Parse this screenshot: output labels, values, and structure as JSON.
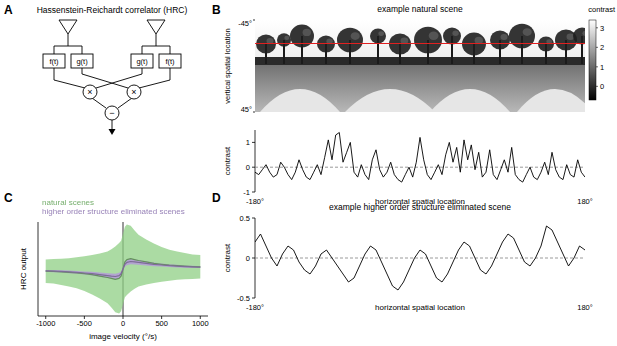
{
  "panel_labels": [
    "A",
    "B",
    "C",
    "D"
  ],
  "diagram": {
    "title": "Hassenstein-Reichardt correlator (HRC)",
    "filters": [
      "f(t)",
      "g(t)",
      "g(t)",
      "f(t)"
    ],
    "operators": [
      "×",
      "×",
      "−"
    ]
  },
  "image": {
    "title": "example natural scene",
    "ylabel": "vertical spatial location",
    "ylim": [
      -45,
      45
    ],
    "yticks": [
      {
        "value": -45,
        "label": "-45°"
      },
      {
        "value": 45,
        "label": "45°"
      }
    ],
    "row": -22,
    "colorbar": {
      "label": "contrast",
      "range": [
        -0.7,
        3.4
      ],
      "ticks": [
        0,
        1,
        2,
        3
      ]
    }
  },
  "chart_data": [
    {
      "type": "line",
      "xlabel": "horizontal spatial location",
      "ylabel": "contrast",
      "color": "#000000",
      "xlim": [
        -180,
        180
      ],
      "xticks": [
        {
          "value": -180,
          "label": "-180°"
        },
        {
          "value": 180,
          "label": "180°"
        }
      ],
      "ylim": [
        -1,
        1.5
      ],
      "yticks": [
        -1,
        0,
        1
      ],
      "x": [
        -180,
        -176,
        -172,
        -168,
        -164,
        -160,
        -156,
        -152,
        -148,
        -144,
        -140,
        -136,
        -132,
        -128,
        -124,
        -120,
        -116,
        -112,
        -108,
        -104,
        -100,
        -96,
        -92,
        -88,
        -84,
        -80,
        -76,
        -72,
        -68,
        -64,
        -60,
        -56,
        -52,
        -48,
        -44,
        -40,
        -36,
        -32,
        -28,
        -24,
        -20,
        -16,
        -12,
        -8,
        -4,
        0,
        4,
        8,
        12,
        16,
        20,
        24,
        28,
        32,
        36,
        40,
        44,
        48,
        52,
        56,
        60,
        64,
        68,
        72,
        76,
        80,
        84,
        88,
        92,
        96,
        100,
        104,
        108,
        112,
        116,
        120,
        124,
        128,
        132,
        136,
        140,
        144,
        148,
        152,
        156,
        160,
        164,
        168,
        172,
        176,
        180
      ],
      "values": [
        -0.2,
        -0.3,
        -0.1,
        0.1,
        -0.2,
        -0.4,
        -0.3,
        0.2,
        0.0,
        -0.3,
        -0.5,
        -0.2,
        0.3,
        -0.1,
        -0.4,
        -0.5,
        -0.2,
        0.1,
        -0.3,
        0.4,
        1.1,
        0.3,
        1.3,
        1.4,
        0.2,
        0.6,
        1.0,
        -0.2,
        -0.4,
        0.1,
        -0.3,
        -0.5,
        0.3,
        0.7,
        -0.1,
        -0.4,
        -0.2,
        0.2,
        -0.3,
        -0.5,
        -0.6,
        -0.3,
        0.0,
        -0.4,
        0.2,
        1.2,
        0.3,
        -0.3,
        -0.5,
        -0.2,
        0.1,
        -0.3,
        0.5,
        1.0,
        0.2,
        0.8,
        -0.2,
        1.1,
        0.3,
        0.9,
        -0.1,
        0.6,
        -0.4,
        -0.2,
        0.7,
        -0.3,
        -0.5,
        -0.1,
        0.3,
        -0.2,
        0.8,
        -0.3,
        -0.5,
        -0.6,
        -0.3,
        0.0,
        -0.4,
        -0.5,
        -0.2,
        0.2,
        -0.3,
        0.6,
        -0.1,
        -0.4,
        -0.5,
        0.1,
        -0.3,
        -0.4,
        0.3,
        -0.2,
        -0.4
      ]
    },
    {
      "type": "line",
      "xlabel": "image velocity (°/s)",
      "ylabel": "HRC output",
      "legend": "upper left",
      "tick_labels": "x",
      "xlim": [
        -1100,
        1100
      ],
      "xticks": [
        -1000,
        -500,
        0,
        500,
        1000
      ],
      "ylim": [
        -1,
        1
      ],
      "x": [
        -1000,
        -900,
        -800,
        -700,
        -600,
        -500,
        -400,
        -300,
        -200,
        -150,
        -100,
        -50,
        -25,
        0,
        25,
        50,
        100,
        150,
        200,
        300,
        400,
        500,
        600,
        700,
        800,
        900,
        1000
      ],
      "series": [
        {
          "name": "natural scenes",
          "color": "#8fcf84",
          "values": [
            -0.045,
            -0.05,
            -0.06,
            -0.07,
            -0.08,
            -0.1,
            -0.12,
            -0.15,
            -0.18,
            -0.2,
            -0.22,
            -0.2,
            -0.15,
            0,
            0.15,
            0.2,
            0.22,
            0.2,
            0.18,
            0.15,
            0.12,
            0.1,
            0.08,
            0.07,
            0.06,
            0.05,
            0.045
          ],
          "error": [
            0.25,
            0.26,
            0.28,
            0.3,
            0.33,
            0.37,
            0.42,
            0.48,
            0.55,
            0.62,
            0.7,
            0.75,
            0.75,
            0.75,
            0.75,
            0.75,
            0.7,
            0.62,
            0.55,
            0.48,
            0.42,
            0.37,
            0.33,
            0.3,
            0.28,
            0.26,
            0.25
          ]
        },
        {
          "name": "higher order structure eliminated scenes",
          "color": "#b39ad8",
          "values": [
            -0.04,
            -0.045,
            -0.05,
            -0.06,
            -0.07,
            -0.085,
            -0.1,
            -0.12,
            -0.14,
            -0.15,
            -0.16,
            -0.14,
            -0.1,
            0,
            0.1,
            0.14,
            0.16,
            0.15,
            0.14,
            0.12,
            0.1,
            0.085,
            0.07,
            0.06,
            0.05,
            0.045,
            0.04
          ],
          "error": [
            0.02,
            0.025,
            0.025,
            0.03,
            0.03,
            0.035,
            0.04,
            0.045,
            0.05,
            0.055,
            0.06,
            0.06,
            0.05,
            0.04,
            0.05,
            0.06,
            0.06,
            0.055,
            0.05,
            0.045,
            0.04,
            0.035,
            0.03,
            0.03,
            0.025,
            0.025,
            0.02
          ]
        }
      ]
    },
    {
      "type": "line",
      "title": "example higher order structure eliminated scene",
      "xlabel": "horizontal spatial location",
      "ylabel": "contrast",
      "color": "#000000",
      "xlim": [
        -180,
        180
      ],
      "xticks": [
        {
          "value": -180,
          "label": "-180°"
        },
        {
          "value": 180,
          "label": "180°"
        }
      ],
      "ylim": [
        -0.5,
        0.5
      ],
      "yticks": [
        -0.5,
        0,
        0.5
      ],
      "x": [
        -180,
        -174,
        -168,
        -162,
        -156,
        -150,
        -144,
        -138,
        -132,
        -126,
        -120,
        -114,
        -108,
        -102,
        -96,
        -90,
        -84,
        -78,
        -72,
        -66,
        -60,
        -54,
        -48,
        -42,
        -36,
        -30,
        -24,
        -18,
        -12,
        -6,
        0,
        6,
        12,
        18,
        24,
        30,
        36,
        42,
        48,
        54,
        60,
        66,
        72,
        78,
        84,
        90,
        96,
        102,
        108,
        114,
        120,
        126,
        132,
        138,
        144,
        150,
        156,
        162,
        168,
        174,
        180
      ],
      "values": [
        0.2,
        0.3,
        0.15,
        0.0,
        -0.1,
        0.05,
        0.15,
        0.1,
        -0.05,
        -0.15,
        -0.2,
        -0.1,
        0.05,
        0.1,
        0.0,
        -0.1,
        -0.2,
        -0.3,
        -0.25,
        -0.1,
        0.05,
        0.15,
        0.1,
        -0.05,
        -0.2,
        -0.35,
        -0.4,
        -0.3,
        -0.15,
        0.0,
        0.1,
        0.05,
        -0.1,
        -0.25,
        -0.3,
        -0.2,
        -0.05,
        0.1,
        0.2,
        0.15,
        0.0,
        -0.15,
        -0.2,
        -0.1,
        0.05,
        0.2,
        0.3,
        0.25,
        0.1,
        -0.05,
        -0.1,
        0.0,
        0.15,
        0.4,
        0.35,
        0.2,
        0.05,
        -0.1,
        0.0,
        0.15,
        0.1
      ]
    }
  ]
}
